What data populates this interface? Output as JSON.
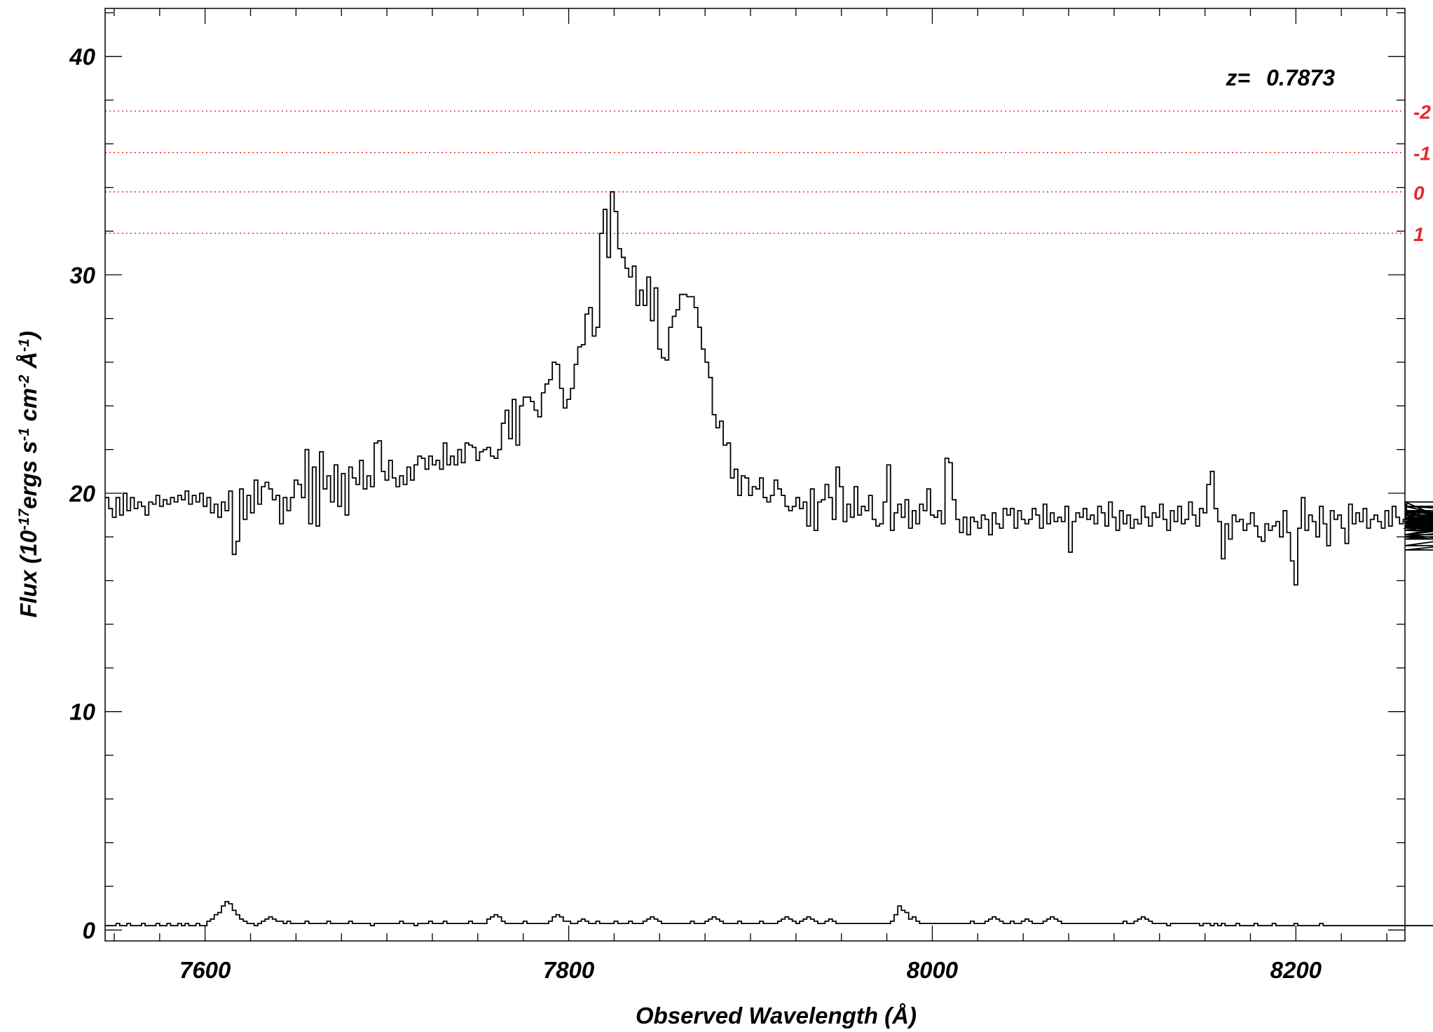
{
  "chart_data": {
    "type": "line",
    "style": "step",
    "xlabel": "Observed Wavelength (Å)",
    "ylabel_parts": [
      "Flux (10",
      "-17",
      "ergs s",
      "-1",
      " cm",
      "-2",
      " Å",
      "-1",
      ")"
    ],
    "xlim": [
      7545,
      8260
    ],
    "ylim": [
      -0.5,
      42.2
    ],
    "x_ticks": [
      7600,
      7800,
      8000,
      8200
    ],
    "x_tick_labels": [
      "7600",
      "7800",
      "8000",
      "8200"
    ],
    "y_ticks": [
      0,
      10,
      20,
      30,
      40
    ],
    "y_tick_labels": [
      "0",
      "10",
      "20",
      "30",
      "40"
    ],
    "annotation": {
      "label": "z=",
      "value": "0.7873"
    },
    "reference_lines": [
      {
        "y": 37.5,
        "label": "-2"
      },
      {
        "y": 35.6,
        "label": "-1"
      },
      {
        "y": 33.8,
        "label": "0"
      },
      {
        "y": 31.9,
        "label": "1"
      }
    ],
    "colors": {
      "spectrum": "#000000",
      "reference": "#e8262b",
      "axes": "#000000"
    },
    "grid": false,
    "series": [
      {
        "x_start": 7545,
        "x_step": 2,
        "values": [
          19.8,
          19.3,
          18.9,
          19.8,
          19.0,
          20.0,
          19.2,
          19.8,
          19.3,
          19.6,
          19.4,
          19.0,
          19.6,
          19.5,
          19.9,
          19.4,
          19.7,
          19.5,
          19.8,
          19.6,
          19.9,
          19.7,
          20.1,
          19.5,
          19.9,
          19.6,
          20.0,
          19.4,
          19.8,
          19.1,
          19.5,
          18.9,
          19.6,
          19.2,
          20.1,
          17.2,
          17.8,
          20.2,
          18.8,
          19.9,
          19.1,
          20.6,
          19.5,
          20.3,
          20.5,
          20.2,
          19.7,
          19.9,
          18.6,
          19.8,
          19.2,
          19.8,
          20.6,
          20.4,
          19.8,
          22.0,
          18.6,
          21.2,
          18.5,
          21.9,
          20.2,
          20.8,
          19.6,
          21.3,
          19.4,
          20.9,
          19.0,
          21.2,
          20.7,
          20.4,
          21.5,
          20.2,
          20.8,
          20.3,
          22.3,
          22.4,
          21.0,
          20.6,
          21.5,
          20.7,
          20.3,
          20.8,
          20.4,
          21.2,
          20.6,
          21.3,
          21.7,
          21.6,
          21.1,
          21.7,
          21.3,
          21.5,
          21.1,
          22.3,
          21.3,
          21.7,
          21.3,
          22.0,
          21.4,
          22.3,
          22.2,
          22.1,
          21.5,
          21.9,
          22.0,
          22.1,
          21.7,
          21.6,
          22.0,
          23.2,
          23.8,
          22.5,
          24.3,
          22.2,
          24.0,
          24.4,
          24.4,
          24.2,
          23.8,
          23.5,
          24.6,
          25.0,
          25.2,
          26.0,
          25.9,
          24.8,
          23.9,
          24.3,
          24.8,
          25.9,
          26.7,
          26.8,
          28.2,
          28.5,
          27.2,
          27.6,
          31.9,
          33.0,
          30.8,
          33.8,
          32.9,
          31.2,
          30.8,
          30.3,
          29.9,
          30.4,
          28.6,
          29.3,
          28.6,
          29.9,
          27.9,
          29.4,
          26.6,
          26.2,
          26.1,
          27.6,
          28.1,
          28.4,
          29.1,
          29.1,
          29.0,
          29.0,
          28.5,
          27.6,
          26.6,
          26.0,
          25.3,
          23.6,
          23.0,
          23.3,
          22.2,
          22.3,
          20.7,
          21.1,
          19.9,
          20.8,
          20.7,
          19.9,
          20.3,
          20.2,
          20.7,
          19.8,
          19.6,
          19.9,
          20.6,
          20.2,
          19.9,
          19.4,
          19.2,
          19.4,
          19.8,
          19.3,
          19.6,
          18.5,
          20.2,
          18.3,
          19.6,
          19.7,
          20.4,
          19.8,
          18.8,
          21.2,
          20.3,
          18.7,
          19.5,
          18.9,
          20.3,
          19.0,
          19.4,
          19.2,
          19.9,
          18.8,
          18.5,
          18.6,
          19.6,
          21.3,
          18.3,
          19.1,
          19.5,
          18.9,
          19.7,
          18.4,
          19.2,
          18.6,
          19.5,
          19.2,
          20.2,
          19.0,
          18.9,
          19.2,
          18.6,
          21.6,
          21.4,
          19.7,
          18.8,
          18.2,
          18.9,
          18.1,
          18.9,
          18.7,
          18.4,
          19.0,
          18.8,
          18.1,
          19.1,
          18.6,
          18.4,
          19.3,
          19.0,
          19.3,
          18.4,
          19.2,
          18.8,
          18.6,
          18.8,
          19.3,
          19.0,
          18.4,
          19.5,
          18.6,
          19.1,
          18.7,
          18.9,
          18.7,
          19.4,
          17.3,
          18.7,
          19.1,
          18.9,
          19.3,
          18.8,
          19.0,
          18.6,
          19.4,
          19.1,
          18.5,
          19.6,
          18.9,
          18.3,
          19.2,
          18.6,
          19.0,
          18.4,
          18.8,
          18.6,
          19.4,
          18.9,
          18.5,
          19.1,
          18.9,
          19.5,
          18.8,
          18.3,
          19.2,
          18.7,
          19.4,
          18.6,
          18.8,
          19.6,
          19.0,
          18.5,
          19.3,
          19.1,
          20.4,
          21.0,
          19.3,
          18.7,
          17.0,
          18.6,
          17.9,
          19.0,
          18.7,
          18.8,
          18.3,
          18.6,
          19.1,
          18.5,
          18.0,
          17.8,
          18.6,
          18.3,
          18.5,
          18.7,
          18.0,
          19.2,
          18.2,
          16.9,
          15.8,
          18.4,
          19.8,
          18.3,
          19.0,
          18.7,
          18.0,
          19.4,
          18.6,
          17.6,
          19.2,
          18.8,
          19.0,
          18.4,
          17.7,
          19.5,
          18.6,
          19.1,
          18.7,
          19.3,
          18.4,
          18.8,
          19.0,
          18.7,
          18.4,
          19.2,
          18.5,
          19.4,
          18.9,
          18.6,
          18.8,
          19.5,
          18.7,
          18.4,
          18.8,
          19.1,
          18.6,
          18.9,
          18.5,
          19.2,
          18.7,
          19.0,
          18.6,
          18.9,
          18.4,
          19.6,
          18.5,
          18.8,
          19.4,
          18.7,
          19.1,
          18.6,
          18.3,
          18.9,
          18.4,
          19.2,
          18.6,
          18.5,
          18.8,
          18.0,
          17.6,
          18.3,
          18.1,
          18.7,
          17.9,
          18.4,
          18.3,
          18.5,
          18.0,
          18.7,
          18.1,
          17.4,
          18.1,
          19.4,
          19.0,
          18.6,
          19.2,
          18.8,
          18.4,
          18.5,
          18.3,
          18.4,
          18.5,
          18.9,
          18.7,
          18.4,
          19.0,
          18.6,
          18.8
        ]
      },
      {
        "x_start": 7545,
        "x_step": 2,
        "values": [
          0.2,
          0.2,
          0.2,
          0.3,
          0.2,
          0.2,
          0.3,
          0.2,
          0.2,
          0.2,
          0.3,
          0.2,
          0.2,
          0.2,
          0.3,
          0.2,
          0.2,
          0.3,
          0.2,
          0.2,
          0.3,
          0.2,
          0.3,
          0.2,
          0.2,
          0.3,
          0.2,
          0.2,
          0.4,
          0.5,
          0.7,
          0.8,
          1.1,
          1.3,
          1.2,
          0.9,
          0.7,
          0.5,
          0.4,
          0.3,
          0.3,
          0.2,
          0.3,
          0.4,
          0.5,
          0.6,
          0.5,
          0.4,
          0.4,
          0.3,
          0.4,
          0.3,
          0.3,
          0.3,
          0.3,
          0.4,
          0.3,
          0.3,
          0.3,
          0.3,
          0.3,
          0.4,
          0.3,
          0.3,
          0.3,
          0.3,
          0.3,
          0.4,
          0.3,
          0.3,
          0.3,
          0.3,
          0.3,
          0.2,
          0.3,
          0.3,
          0.3,
          0.3,
          0.3,
          0.3,
          0.3,
          0.4,
          0.3,
          0.3,
          0.3,
          0.2,
          0.3,
          0.3,
          0.3,
          0.4,
          0.3,
          0.3,
          0.3,
          0.4,
          0.3,
          0.3,
          0.3,
          0.3,
          0.3,
          0.3,
          0.4,
          0.3,
          0.3,
          0.3,
          0.3,
          0.5,
          0.6,
          0.7,
          0.6,
          0.4,
          0.3,
          0.3,
          0.3,
          0.3,
          0.3,
          0.4,
          0.3,
          0.3,
          0.3,
          0.3,
          0.3,
          0.3,
          0.4,
          0.6,
          0.7,
          0.6,
          0.4,
          0.4,
          0.3,
          0.3,
          0.4,
          0.5,
          0.4,
          0.3,
          0.3,
          0.4,
          0.3,
          0.3,
          0.3,
          0.3,
          0.4,
          0.3,
          0.3,
          0.3,
          0.4,
          0.3,
          0.3,
          0.3,
          0.4,
          0.5,
          0.6,
          0.5,
          0.4,
          0.3,
          0.3,
          0.3,
          0.3,
          0.3,
          0.3,
          0.3,
          0.3,
          0.4,
          0.3,
          0.3,
          0.3,
          0.4,
          0.5,
          0.6,
          0.5,
          0.4,
          0.3,
          0.3,
          0.3,
          0.3,
          0.4,
          0.3,
          0.3,
          0.3,
          0.3,
          0.3,
          0.4,
          0.3,
          0.3,
          0.3,
          0.3,
          0.4,
          0.5,
          0.6,
          0.5,
          0.4,
          0.3,
          0.4,
          0.5,
          0.6,
          0.5,
          0.4,
          0.3,
          0.3,
          0.4,
          0.5,
          0.4,
          0.3,
          0.3,
          0.3,
          0.3,
          0.3,
          0.3,
          0.3,
          0.3,
          0.3,
          0.3,
          0.3,
          0.3,
          0.3,
          0.3,
          0.3,
          0.4,
          0.7,
          1.1,
          0.9,
          0.8,
          0.5,
          0.6,
          0.4,
          0.3,
          0.3,
          0.3,
          0.3,
          0.3,
          0.3,
          0.3,
          0.3,
          0.3,
          0.3,
          0.3,
          0.3,
          0.3,
          0.3,
          0.4,
          0.3,
          0.3,
          0.3,
          0.4,
          0.5,
          0.6,
          0.5,
          0.4,
          0.3,
          0.3,
          0.4,
          0.3,
          0.3,
          0.4,
          0.5,
          0.4,
          0.3,
          0.3,
          0.3,
          0.4,
          0.5,
          0.6,
          0.5,
          0.4,
          0.3,
          0.3,
          0.3,
          0.3,
          0.3,
          0.3,
          0.3,
          0.3,
          0.3,
          0.3,
          0.3,
          0.3,
          0.3,
          0.3,
          0.3,
          0.3,
          0.3,
          0.4,
          0.3,
          0.3,
          0.4,
          0.5,
          0.6,
          0.5,
          0.4,
          0.3,
          0.3,
          0.3,
          0.3,
          0.2,
          0.3,
          0.3,
          0.3,
          0.3,
          0.3,
          0.3,
          0.3,
          0.3,
          0.2,
          0.3,
          0.3,
          0.2,
          0.3,
          0.2,
          0.3,
          0.2,
          0.2,
          0.2,
          0.3,
          0.2,
          0.2,
          0.2,
          0.2,
          0.3,
          0.2,
          0.2,
          0.2,
          0.2,
          0.3,
          0.2,
          0.2,
          0.2,
          0.2,
          0.2,
          0.3,
          0.2,
          0.2,
          0.2,
          0.2,
          0.2,
          0.2,
          0.3,
          0.2,
          0.2,
          0.2,
          0.2,
          0.2,
          0.2,
          0.2,
          0.2,
          0.2,
          0.2,
          0.2,
          0.2,
          0.2,
          0.2,
          0.2,
          0.2,
          0.2,
          0.2,
          0.2,
          0.2,
          0.2,
          0.2,
          0.2,
          0.2,
          0.2,
          0.2,
          0.2,
          0.2,
          0.2,
          0.2,
          0.2,
          0.2,
          0.2,
          0.2,
          0.2,
          0.2,
          0.2,
          0.2,
          0.2,
          0.2,
          0.2,
          0.2,
          0.2,
          0.2,
          0.2,
          0.2,
          0.2,
          0.2,
          0.2,
          0.2,
          0.2,
          0.2,
          0.2,
          0.2,
          0.2,
          0.2,
          0.2,
          0.2,
          0.2,
          0.2,
          0.2,
          0.2
        ]
      }
    ]
  }
}
